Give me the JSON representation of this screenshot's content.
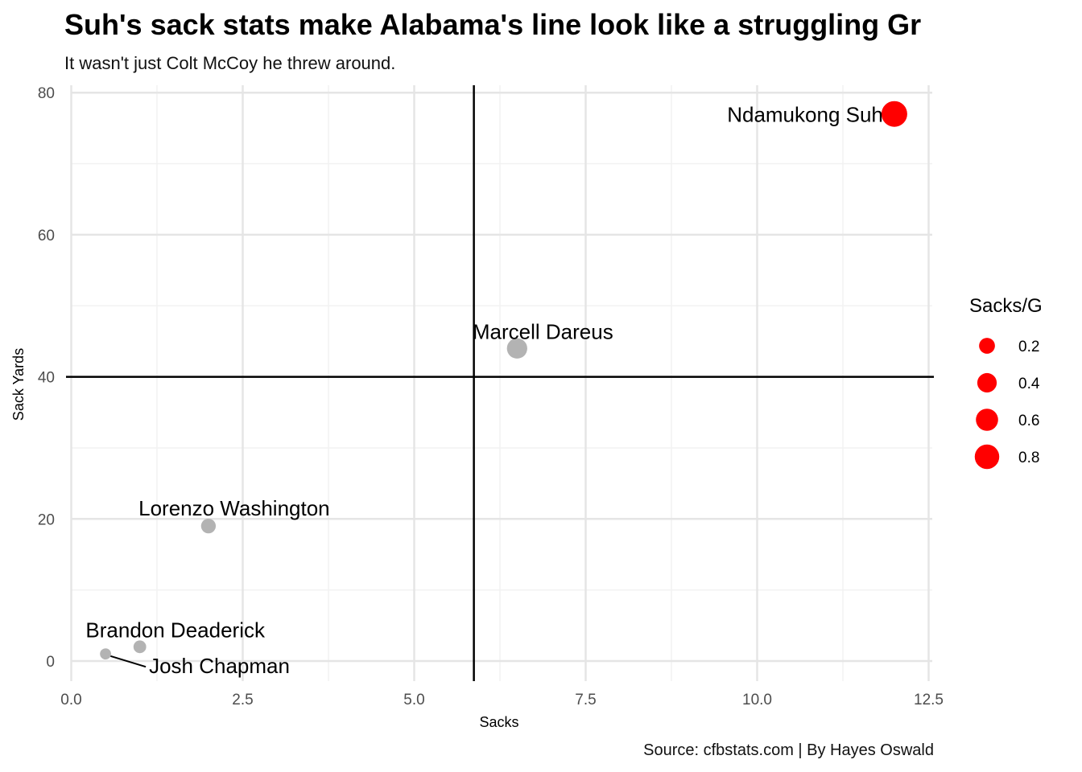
{
  "chart_data": {
    "type": "scatter",
    "title": "Suh's sack stats make Alabama's line look like a struggling Gr",
    "subtitle": "It wasn't just Colt McCoy he threw around.",
    "caption": "Source: cfbstats.com | By Hayes Oswald",
    "xlabel": "Sacks",
    "ylabel": "Sack Yards",
    "xlim": [
      0,
      12.6
    ],
    "ylim": [
      -3,
      80.6
    ],
    "x_ticks": [
      0,
      2.5,
      5,
      7.5,
      10,
      12.5
    ],
    "x_tick_labels": [
      "0.0",
      "2.5",
      "5.0",
      "7.5",
      "10.0",
      "12.5"
    ],
    "y_ticks": [
      0,
      20,
      40,
      60,
      80
    ],
    "y_tick_labels": [
      "0",
      "20",
      "40",
      "60",
      "80"
    ],
    "grid": true,
    "reference_lines": {
      "x": 5.87,
      "y": 40
    },
    "points": [
      {
        "label": "Ndamukong Suh",
        "x": 12,
        "y": 77,
        "size": 0.92,
        "color": "#ff0000"
      },
      {
        "label": "Marcell Dareus",
        "x": 6.5,
        "y": 44,
        "size": 0.46,
        "color": "#b3b3b3"
      },
      {
        "label": "Lorenzo Washington",
        "x": 2,
        "y": 19,
        "size": 0.15,
        "color": "#b3b3b3"
      },
      {
        "label": "Brandon Deaderick",
        "x": 1,
        "y": 2,
        "size": 0.08,
        "color": "#b3b3b3"
      },
      {
        "label": "Josh Chapman",
        "x": 0.5,
        "y": 1,
        "size": 0.04,
        "color": "#b3b3b3"
      }
    ],
    "legend": {
      "title": "Sacks/G",
      "position": "right",
      "color": "#ff0000",
      "entries": [
        {
          "label": "0.2",
          "size": 0.2
        },
        {
          "label": "0.4",
          "size": 0.4
        },
        {
          "label": "0.6",
          "size": 0.6
        },
        {
          "label": "0.8",
          "size": 0.8
        }
      ]
    }
  }
}
